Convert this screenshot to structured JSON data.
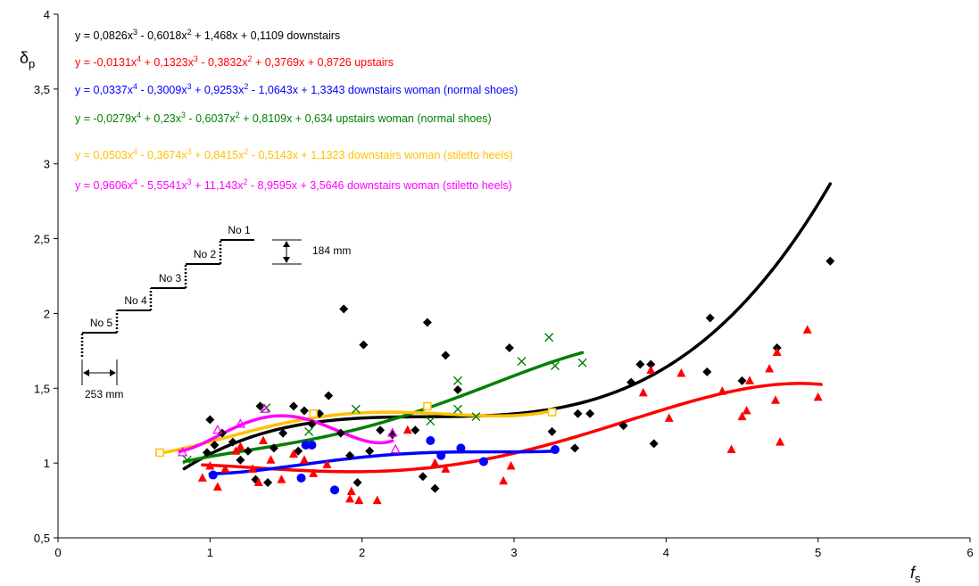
{
  "chart_data": {
    "type": "scatter",
    "title": "",
    "xlabel": "f",
    "xlabel_sub": "s",
    "ylabel": "δ",
    "ylabel_sub": "p",
    "xlim": [
      0,
      6
    ],
    "ylim": [
      0.5,
      4
    ],
    "x_ticks": [
      "0",
      "1",
      "2",
      "3",
      "4",
      "5",
      "6"
    ],
    "y_ticks": [
      "0,5",
      "1",
      "1,5",
      "2",
      "2,5",
      "3",
      "3,5",
      "4"
    ],
    "grid": false,
    "legend": "none",
    "equations": [
      {
        "color": "#000000",
        "parts": [
          [
            "y = 0,0826x",
            ""
          ],
          [
            "3",
            1
          ],
          [
            " - 0,6018x",
            ""
          ],
          [
            "2",
            1
          ],
          [
            " + 1,468x + 0,1109 downstairs",
            ""
          ]
        ]
      },
      {
        "color": "#ff0000",
        "parts": [
          [
            "y = -0,0131x",
            ""
          ],
          [
            "4",
            1
          ],
          [
            " + 0,1323x",
            ""
          ],
          [
            "3",
            1
          ],
          [
            " - 0,3832x",
            ""
          ],
          [
            "2",
            1
          ],
          [
            " + 0,3769x + 0,8726 upstairs",
            ""
          ]
        ]
      },
      {
        "color": "#0000ff",
        "parts": [
          [
            "y = 0,0337x",
            ""
          ],
          [
            "4",
            1
          ],
          [
            " - 0,3009x",
            ""
          ],
          [
            "3",
            1
          ],
          [
            " + 0,9253x",
            ""
          ],
          [
            "2",
            1
          ],
          [
            " - 1,0643x + 1,3343 downstairs woman (normal shoes)",
            ""
          ]
        ]
      },
      {
        "color": "#008000",
        "parts": [
          [
            "y = -0,0279x",
            ""
          ],
          [
            "4",
            1
          ],
          [
            " + 0,23x",
            ""
          ],
          [
            "3",
            1
          ],
          [
            " - 0,6037x",
            ""
          ],
          [
            "2",
            1
          ],
          [
            " + 0,8109x + 0,634 upstairs woman (normal shoes)",
            ""
          ]
        ]
      },
      {
        "color": "#ffc000",
        "parts": [
          [
            "y = 0,0503x",
            ""
          ],
          [
            "4",
            1
          ],
          [
            " - 0,3674x",
            ""
          ],
          [
            "3",
            1
          ],
          [
            " + 0,8415x",
            ""
          ],
          [
            "2",
            1
          ],
          [
            " - 0,5143x + 1,1323 downstairs woman (stiletto heels)",
            ""
          ]
        ]
      },
      {
        "color": "#ff00ff",
        "parts": [
          [
            "y = 0,9606x",
            ""
          ],
          [
            "4",
            1
          ],
          [
            " - 5,5541x",
            ""
          ],
          [
            "3",
            1
          ],
          [
            " + 11,143x",
            ""
          ],
          [
            "2",
            1
          ],
          [
            " - 8,9595x + 3,5646 downstairs woman (stiletto heels)",
            ""
          ]
        ]
      }
    ],
    "series": [
      {
        "marker": "diamond",
        "color": "#000000",
        "coeffs": [
          0.1109,
          1.468,
          -0.6018,
          0.0826
        ],
        "fit_range": [
          0.83,
          5.08
        ],
        "points": [
          [
            0.98,
            1.07
          ],
          [
            1.0,
            1.29
          ],
          [
            1.03,
            1.12
          ],
          [
            1.08,
            1.2
          ],
          [
            1.15,
            1.14
          ],
          [
            1.2,
            1.02
          ],
          [
            1.25,
            1.08
          ],
          [
            1.3,
            0.89
          ],
          [
            1.33,
            1.38
          ],
          [
            1.38,
            0.87
          ],
          [
            1.42,
            1.1
          ],
          [
            1.48,
            1.2
          ],
          [
            1.55,
            1.38
          ],
          [
            1.58,
            1.08
          ],
          [
            1.62,
            1.35
          ],
          [
            1.67,
            1.26
          ],
          [
            1.72,
            1.33
          ],
          [
            1.78,
            1.45
          ],
          [
            1.86,
            1.2
          ],
          [
            1.88,
            2.03
          ],
          [
            1.92,
            1.05
          ],
          [
            1.97,
            0.87
          ],
          [
            2.01,
            1.79
          ],
          [
            2.05,
            1.08
          ],
          [
            2.12,
            1.22
          ],
          [
            2.2,
            1.19
          ],
          [
            2.35,
            1.22
          ],
          [
            2.4,
            0.91
          ],
          [
            2.43,
            1.94
          ],
          [
            2.48,
            0.83
          ],
          [
            2.55,
            1.72
          ],
          [
            2.63,
            1.49
          ],
          [
            2.97,
            1.77
          ],
          [
            3.25,
            1.21
          ],
          [
            3.4,
            1.1
          ],
          [
            3.42,
            1.33
          ],
          [
            3.5,
            1.33
          ],
          [
            3.72,
            1.25
          ],
          [
            3.77,
            1.54
          ],
          [
            3.83,
            1.66
          ],
          [
            3.9,
            1.66
          ],
          [
            3.92,
            1.13
          ],
          [
            4.27,
            1.61
          ],
          [
            4.29,
            1.97
          ],
          [
            4.5,
            1.55
          ],
          [
            4.73,
            1.77
          ],
          [
            5.08,
            2.35
          ]
        ]
      },
      {
        "marker": "triangle",
        "color": "#ff0000",
        "coeffs": [
          0.8726,
          0.3769,
          -0.3832,
          0.1323,
          -0.0131
        ],
        "fit_range": [
          0.95,
          5.02
        ],
        "points": [
          [
            0.95,
            0.9
          ],
          [
            1.0,
            0.98
          ],
          [
            1.05,
            0.84
          ],
          [
            1.1,
            0.96
          ],
          [
            1.17,
            1.08
          ],
          [
            1.2,
            1.11
          ],
          [
            1.28,
            0.96
          ],
          [
            1.32,
            0.87
          ],
          [
            1.35,
            1.15
          ],
          [
            1.4,
            1.02
          ],
          [
            1.47,
            0.89
          ],
          [
            1.55,
            1.06
          ],
          [
            1.62,
            1.02
          ],
          [
            1.68,
            0.93
          ],
          [
            1.77,
            0.99
          ],
          [
            1.92,
            0.76
          ],
          [
            1.93,
            0.81
          ],
          [
            1.98,
            0.75
          ],
          [
            2.1,
            0.75
          ],
          [
            2.3,
            1.22
          ],
          [
            2.48,
            1.0
          ],
          [
            2.55,
            0.96
          ],
          [
            2.93,
            0.88
          ],
          [
            2.98,
            0.98
          ],
          [
            3.85,
            1.47
          ],
          [
            3.9,
            1.62
          ],
          [
            4.02,
            1.3
          ],
          [
            4.1,
            1.6
          ],
          [
            4.37,
            1.48
          ],
          [
            4.43,
            1.09
          ],
          [
            4.5,
            1.31
          ],
          [
            4.53,
            1.35
          ],
          [
            4.55,
            1.55
          ],
          [
            4.68,
            1.63
          ],
          [
            4.72,
            1.42
          ],
          [
            4.73,
            1.74
          ],
          [
            4.75,
            1.14
          ],
          [
            4.93,
            1.89
          ],
          [
            5.0,
            1.44
          ]
        ]
      },
      {
        "marker": "circle",
        "color": "#0000ff",
        "coeffs": [
          1.3343,
          -1.0643,
          0.9253,
          -0.3009,
          0.0337
        ],
        "fit_range": [
          1.0,
          3.25
        ],
        "points": [
          [
            1.02,
            0.92
          ],
          [
            1.6,
            0.9
          ],
          [
            1.63,
            1.12
          ],
          [
            1.67,
            1.12
          ],
          [
            1.82,
            0.82
          ],
          [
            2.45,
            1.15
          ],
          [
            2.52,
            1.05
          ],
          [
            2.65,
            1.1
          ],
          [
            2.8,
            1.01
          ],
          [
            3.27,
            1.09
          ]
        ]
      },
      {
        "marker": "cross",
        "color": "#008000",
        "coeffs": [
          0.634,
          0.8109,
          -0.6037,
          0.23,
          -0.0279
        ],
        "fit_range": [
          0.83,
          3.45
        ],
        "points": [
          [
            0.85,
            1.02
          ],
          [
            1.37,
            1.37
          ],
          [
            1.65,
            1.21
          ],
          [
            1.96,
            1.36
          ],
          [
            2.45,
            1.28
          ],
          [
            2.63,
            1.36
          ],
          [
            2.63,
            1.55
          ],
          [
            2.75,
            1.31
          ],
          [
            3.05,
            1.68
          ],
          [
            3.23,
            1.84
          ],
          [
            3.27,
            1.65
          ],
          [
            3.45,
            1.67
          ]
        ]
      },
      {
        "marker": "square",
        "color": "#ffc000",
        "coeffs": [
          1.1323,
          -0.5143,
          0.8415,
          -0.3674,
          0.0503
        ],
        "fit_range": [
          0.65,
          3.25
        ],
        "points": [
          [
            0.67,
            1.07
          ],
          [
            1.68,
            1.33
          ],
          [
            2.43,
            1.38
          ],
          [
            3.25,
            1.34
          ]
        ]
      },
      {
        "marker": "triangle-open",
        "color": "#ff00ff",
        "coeffs": [
          3.5646,
          -8.9595,
          11.143,
          -5.5541,
          0.9606
        ],
        "fit_range": [
          0.8,
          2.2
        ],
        "points": [
          [
            0.82,
            1.07
          ],
          [
            1.05,
            1.22
          ],
          [
            1.2,
            1.26
          ],
          [
            1.36,
            1.36
          ],
          [
            2.2,
            1.2
          ],
          [
            2.22,
            1.09
          ]
        ]
      }
    ],
    "annotations": {
      "step_labels": [
        "No 5",
        "No 4",
        "No 3",
        "No 2",
        "No 1"
      ],
      "height_label": "184 mm",
      "width_label": "253 mm"
    }
  }
}
